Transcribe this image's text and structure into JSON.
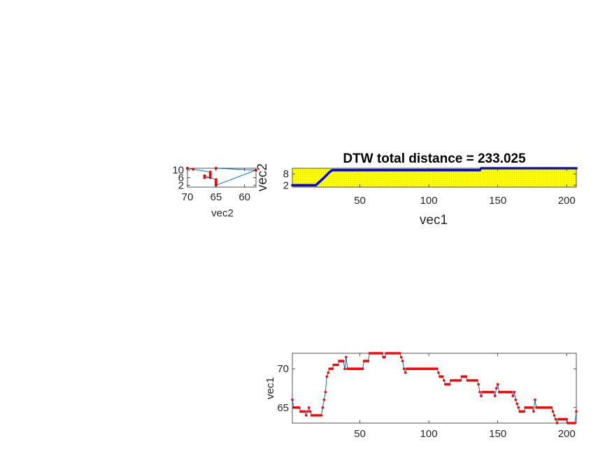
{
  "figure": {
    "title": "DTW total distance = 233.025"
  },
  "chart_data": [
    {
      "panel": "dtw-path",
      "type": "line",
      "title": "DTW total distance = 233.025",
      "xlabel": "vec1",
      "ylabel": "vec2",
      "xlim": [
        1,
        207
      ],
      "ylim": [
        1,
        11
      ],
      "x_ticks": [
        50,
        100,
        150,
        200
      ],
      "y_ticks": [
        2,
        8
      ],
      "grid": false,
      "background_color": "#ffff00",
      "path_color": "#0000ff",
      "series": [
        {
          "path_points": [
            [
              1,
              2
            ],
            [
              18,
              2
            ],
            [
              24,
              6
            ],
            [
              28,
              9
            ],
            [
              30,
              10
            ],
            [
              137,
              10
            ],
            [
              138,
              11
            ],
            [
              207,
              11
            ]
          ]
        }
      ]
    },
    {
      "panel": "vec2-series",
      "type": "line",
      "xlabel": "vec2",
      "ylabel": "",
      "xlim": [
        70,
        58
      ],
      "ylim": [
        1,
        11
      ],
      "x_reversed": true,
      "x_ticks": [
        70,
        65,
        60
      ],
      "y_ticks": [
        2,
        6,
        10
      ],
      "line_color": "#0072bd",
      "marker_color": "#ff0000",
      "series": [
        {
          "points": [
            [
              70,
              11
            ],
            [
              69,
              10.5
            ],
            [
              66,
              9
            ],
            [
              66,
              8
            ],
            [
              66,
              7
            ],
            [
              66,
              6
            ],
            [
              67,
              6
            ],
            [
              67,
              7
            ],
            [
              65,
              5
            ],
            [
              65,
              4
            ],
            [
              65,
              3
            ],
            [
              65,
              2
            ],
            [
              58,
              10
            ],
            [
              65,
              11
            ]
          ]
        }
      ]
    },
    {
      "panel": "vec1-series",
      "type": "line",
      "xlabel": "",
      "ylabel": "vec1",
      "xlim": [
        1,
        207
      ],
      "ylim": [
        63,
        72
      ],
      "x_ticks": [
        50,
        100,
        150,
        200
      ],
      "y_ticks": [
        65,
        70
      ],
      "line_color": "#0072bd",
      "marker_color": "#ff0000",
      "series": [
        {
          "segments": [
            [
              1,
              66
            ],
            [
              2,
              65
            ],
            [
              6,
              65
            ],
            [
              7,
              64.5
            ],
            [
              10,
              64.5
            ],
            [
              11,
              64
            ],
            [
              12,
              64.5
            ],
            [
              13,
              65
            ],
            [
              14,
              64.5
            ],
            [
              15,
              64
            ],
            [
              22,
              64
            ],
            [
              23,
              65
            ],
            [
              24,
              66
            ],
            [
              25,
              67
            ],
            [
              26,
              69
            ],
            [
              27,
              69.5
            ],
            [
              28,
              70
            ],
            [
              30,
              70
            ],
            [
              31,
              70.5
            ],
            [
              34,
              70.5
            ],
            [
              35,
              71
            ],
            [
              38,
              71
            ],
            [
              39,
              70
            ],
            [
              40,
              71.5
            ],
            [
              41,
              70
            ],
            [
              52,
              70
            ],
            [
              53,
              71
            ],
            [
              56,
              71
            ],
            [
              57,
              72
            ],
            [
              66,
              72
            ],
            [
              67,
              71.5
            ],
            [
              68,
              71.5
            ],
            [
              69,
              72
            ],
            [
              79,
              72
            ],
            [
              80,
              71.5
            ],
            [
              81,
              71
            ],
            [
              82,
              70
            ],
            [
              83,
              69.5
            ],
            [
              84,
              70
            ],
            [
              106,
              70
            ],
            [
              107,
              69.5
            ],
            [
              108,
              69
            ],
            [
              110,
              69
            ],
            [
              111,
              68.5
            ],
            [
              112,
              68
            ],
            [
              115,
              68
            ],
            [
              116,
              68.5
            ],
            [
              123,
              68.5
            ],
            [
              124,
              69
            ],
            [
              127,
              69
            ],
            [
              128,
              68.5
            ],
            [
              135,
              68.5
            ],
            [
              136,
              68
            ],
            [
              137,
              67
            ],
            [
              138,
              66.5
            ],
            [
              139,
              67
            ],
            [
              147,
              67
            ],
            [
              148,
              66.5
            ],
            [
              149,
              67.5
            ],
            [
              150,
              68
            ],
            [
              151,
              67
            ],
            [
              160,
              67
            ],
            [
              161,
              66.5
            ],
            [
              162,
              67
            ],
            [
              163,
              66
            ],
            [
              164,
              65.5
            ],
            [
              165,
              65
            ],
            [
              166,
              64.5
            ],
            [
              169,
              64.5
            ],
            [
              170,
              65
            ],
            [
              175,
              65
            ],
            [
              176,
              64.5
            ],
            [
              177,
              66
            ],
            [
              178,
              65
            ],
            [
              189,
              65
            ],
            [
              190,
              64.5
            ],
            [
              191,
              64
            ],
            [
              192,
              63.5
            ],
            [
              193,
              63
            ],
            [
              194,
              63.5
            ],
            [
              200,
              63.5
            ],
            [
              201,
              63
            ],
            [
              206,
              63
            ],
            [
              207,
              64.5
            ]
          ]
        }
      ]
    }
  ]
}
